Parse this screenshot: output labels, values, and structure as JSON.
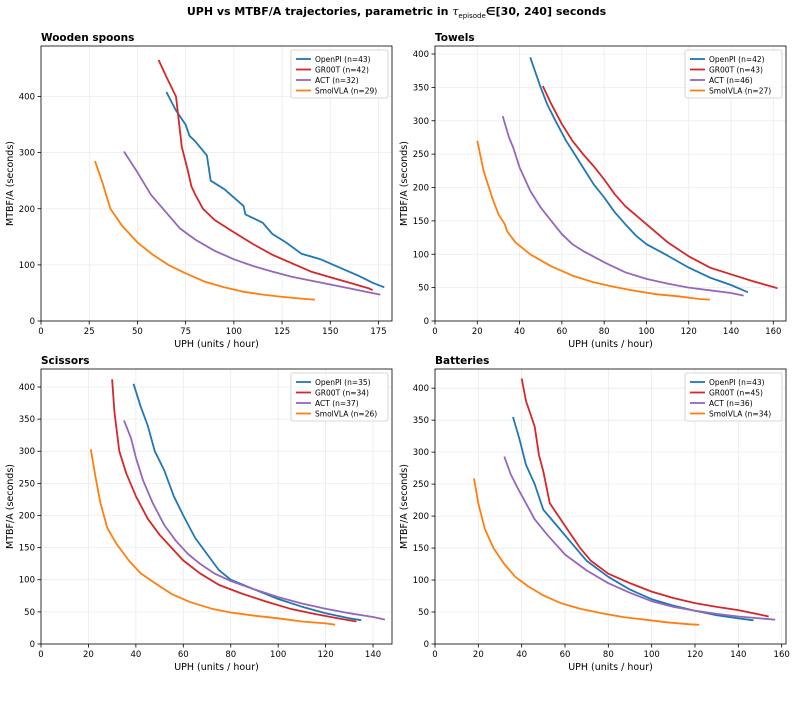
{
  "figure": {
    "title_prefix": "UPH vs MTBF/A trajectories, parametric in",
    "title_symbol": "τ",
    "title_subscript": "episode",
    "title_suffix": "∈[30, 240] seconds"
  },
  "colors": {
    "OpenPI": "#1f77b4",
    "GR00T": "#d62728",
    "ACT": "#9467bd",
    "SmolVLA": "#ff7f0e"
  },
  "chart_data": [
    {
      "type": "line",
      "title": "Wooden spoons",
      "xlabel": "UPH (units / hour)",
      "ylabel": "MTBF/A (seconds)",
      "xlim": [
        0,
        182
      ],
      "ylim": [
        0,
        490
      ],
      "xticks": [
        0,
        25,
        50,
        75,
        100,
        125,
        150,
        175
      ],
      "yticks": [
        0,
        100,
        200,
        300,
        400
      ],
      "grid": true,
      "legend_position": "top-right",
      "series": [
        {
          "name": "OpenPI (n=43)",
          "color": "#1f77b4",
          "x": [
            65,
            70,
            75,
            77,
            80,
            86,
            88,
            95,
            105,
            106,
            115,
            120,
            127,
            135,
            145,
            155,
            165,
            172,
            178
          ],
          "y": [
            408,
            375,
            350,
            330,
            320,
            295,
            250,
            235,
            205,
            190,
            175,
            155,
            140,
            120,
            110,
            95,
            80,
            68,
            60
          ]
        },
        {
          "name": "GR00T (n=42)",
          "color": "#d62728",
          "x": [
            61,
            65,
            70,
            73,
            76,
            78,
            80,
            84,
            90,
            100,
            110,
            120,
            130,
            140,
            150,
            160,
            170,
            172
          ],
          "y": [
            465,
            435,
            400,
            310,
            270,
            240,
            225,
            200,
            180,
            158,
            137,
            118,
            103,
            88,
            78,
            68,
            58,
            55
          ]
        },
        {
          "name": "ACT (n=32)",
          "color": "#9467bd",
          "x": [
            43,
            50,
            57,
            65,
            72,
            80,
            90,
            100,
            110,
            120,
            130,
            140,
            150,
            160,
            170,
            176
          ],
          "y": [
            302,
            265,
            225,
            193,
            165,
            145,
            125,
            110,
            98,
            88,
            79,
            72,
            65,
            58,
            51,
            47
          ]
        },
        {
          "name": "SmolVLA (n=29)",
          "color": "#ff7f0e",
          "x": [
            28,
            32,
            36,
            42,
            50,
            58,
            66,
            75,
            85,
            95,
            105,
            115,
            125,
            135,
            142
          ],
          "y": [
            285,
            245,
            200,
            170,
            140,
            118,
            100,
            85,
            70,
            60,
            52,
            47,
            43,
            40,
            38
          ]
        }
      ]
    },
    {
      "type": "line",
      "title": "Towels",
      "xlabel": "UPH (units / hour)",
      "ylabel": "MTBF/A (seconds)",
      "xlim": [
        0,
        166
      ],
      "ylim": [
        0,
        412
      ],
      "xticks": [
        0,
        20,
        40,
        60,
        80,
        100,
        120,
        140,
        160
      ],
      "yticks": [
        0,
        50,
        100,
        150,
        200,
        250,
        300,
        350,
        400
      ],
      "grid": true,
      "legend_position": "top-right",
      "series": [
        {
          "name": "OpenPI (n=42)",
          "color": "#1f77b4",
          "x": [
            45,
            50,
            53,
            57,
            62,
            66,
            70,
            75,
            80,
            85,
            90,
            95,
            100,
            110,
            120,
            130,
            140,
            145,
            148
          ],
          "y": [
            395,
            350,
            325,
            300,
            270,
            250,
            230,
            205,
            185,
            163,
            145,
            128,
            115,
            98,
            80,
            65,
            54,
            47,
            43
          ]
        },
        {
          "name": "GR00T (n=43)",
          "color": "#d62728",
          "x": [
            51,
            55,
            60,
            65,
            70,
            75,
            80,
            85,
            90,
            100,
            110,
            120,
            130,
            140,
            150,
            160,
            162
          ],
          "y": [
            352,
            325,
            295,
            270,
            250,
            232,
            212,
            190,
            172,
            145,
            118,
            97,
            80,
            70,
            60,
            51,
            49
          ]
        },
        {
          "name": "ACT (n=46)",
          "color": "#9467bd",
          "x": [
            32,
            35,
            37,
            40,
            45,
            50,
            55,
            60,
            65,
            70,
            80,
            90,
            100,
            110,
            120,
            130,
            140,
            146
          ],
          "y": [
            307,
            275,
            260,
            230,
            195,
            170,
            150,
            130,
            115,
            105,
            88,
            73,
            63,
            56,
            50,
            46,
            42,
            38
          ]
        },
        {
          "name": "SmolVLA (n=27)",
          "color": "#ff7f0e",
          "x": [
            20,
            23,
            27,
            30,
            33,
            34,
            38,
            45,
            55,
            65,
            75,
            85,
            95,
            105,
            115,
            125,
            130
          ],
          "y": [
            270,
            225,
            185,
            160,
            145,
            135,
            118,
            100,
            82,
            68,
            58,
            51,
            45,
            40,
            37,
            33,
            32
          ]
        }
      ]
    },
    {
      "type": "line",
      "title": "Scissors",
      "xlabel": "UPH (units / hour)",
      "ylabel": "MTBF/A (seconds)",
      "xlim": [
        0,
        148
      ],
      "ylim": [
        0,
        428
      ],
      "xticks": [
        0,
        20,
        40,
        60,
        80,
        100,
        120,
        140
      ],
      "yticks": [
        0,
        50,
        100,
        150,
        200,
        250,
        300,
        350,
        400
      ],
      "grid": true,
      "legend_position": "top-right",
      "series": [
        {
          "name": "OpenPI (n=35)",
          "color": "#1f77b4",
          "x": [
            39,
            42,
            45,
            48,
            52,
            56,
            60,
            65,
            70,
            75,
            80,
            90,
            100,
            110,
            120,
            130,
            135
          ],
          "y": [
            405,
            370,
            340,
            300,
            270,
            230,
            200,
            165,
            140,
            115,
            100,
            85,
            70,
            58,
            48,
            40,
            37
          ]
        },
        {
          "name": "GR00T (n=34)",
          "color": "#d62728",
          "x": [
            30,
            31,
            33,
            36,
            40,
            45,
            50,
            55,
            60,
            67,
            75,
            85,
            95,
            105,
            115,
            125,
            133
          ],
          "y": [
            412,
            360,
            300,
            265,
            230,
            195,
            170,
            150,
            130,
            110,
            92,
            78,
            66,
            55,
            47,
            40,
            35
          ]
        },
        {
          "name": "ACT (n=37)",
          "color": "#9467bd",
          "x": [
            35,
            38,
            40,
            43,
            47,
            52,
            57,
            62,
            67,
            73,
            80,
            90,
            100,
            110,
            120,
            130,
            140,
            145
          ],
          "y": [
            348,
            320,
            290,
            255,
            220,
            185,
            160,
            140,
            125,
            110,
            98,
            85,
            73,
            63,
            55,
            48,
            42,
            38
          ]
        },
        {
          "name": "SmolVLA (n=26)",
          "color": "#ff7f0e",
          "x": [
            21,
            23,
            25,
            28,
            32,
            37,
            42,
            48,
            55,
            63,
            72,
            80,
            90,
            100,
            110,
            120,
            124
          ],
          "y": [
            303,
            260,
            220,
            180,
            155,
            130,
            110,
            95,
            78,
            65,
            55,
            49,
            44,
            40,
            35,
            32,
            30
          ]
        }
      ]
    },
    {
      "type": "line",
      "title": "Batteries",
      "xlabel": "UPH (units / hour)",
      "ylabel": "MTBF/A (seconds)",
      "xlim": [
        0,
        162
      ],
      "ylim": [
        0,
        430
      ],
      "xticks": [
        0,
        20,
        40,
        60,
        80,
        100,
        120,
        140,
        160
      ],
      "yticks": [
        0,
        50,
        100,
        150,
        200,
        250,
        300,
        350,
        400
      ],
      "grid": true,
      "legend_position": "top-right",
      "series": [
        {
          "name": "OpenPI (n=43)",
          "color": "#1f77b4",
          "x": [
            36,
            39,
            42,
            46,
            50,
            55,
            60,
            65,
            70,
            80,
            90,
            100,
            110,
            120,
            130,
            140,
            147
          ],
          "y": [
            355,
            320,
            280,
            250,
            210,
            190,
            170,
            150,
            130,
            105,
            85,
            70,
            60,
            52,
            45,
            40,
            37
          ]
        },
        {
          "name": "GR00T (n=45)",
          "color": "#d62728",
          "x": [
            40,
            42,
            46,
            48,
            50,
            53,
            57,
            62,
            67,
            72,
            80,
            90,
            100,
            110,
            120,
            130,
            140,
            150,
            154
          ],
          "y": [
            415,
            380,
            340,
            295,
            270,
            220,
            200,
            175,
            150,
            130,
            110,
            95,
            82,
            72,
            64,
            58,
            53,
            46,
            43
          ]
        },
        {
          "name": "ACT (n=36)",
          "color": "#9467bd",
          "x": [
            32,
            35,
            38,
            42,
            46,
            52,
            60,
            70,
            80,
            90,
            100,
            110,
            120,
            130,
            140,
            150,
            157
          ],
          "y": [
            293,
            265,
            245,
            220,
            195,
            170,
            140,
            115,
            95,
            80,
            67,
            58,
            52,
            47,
            43,
            40,
            38
          ]
        },
        {
          "name": "SmolVLA (n=34)",
          "color": "#ff7f0e",
          "x": [
            18,
            20,
            23,
            27,
            32,
            37,
            43,
            50,
            58,
            67,
            77,
            87,
            97,
            107,
            117,
            122
          ],
          "y": [
            259,
            220,
            180,
            150,
            125,
            105,
            90,
            76,
            64,
            55,
            48,
            42,
            38,
            34,
            31,
            30
          ]
        }
      ]
    }
  ]
}
